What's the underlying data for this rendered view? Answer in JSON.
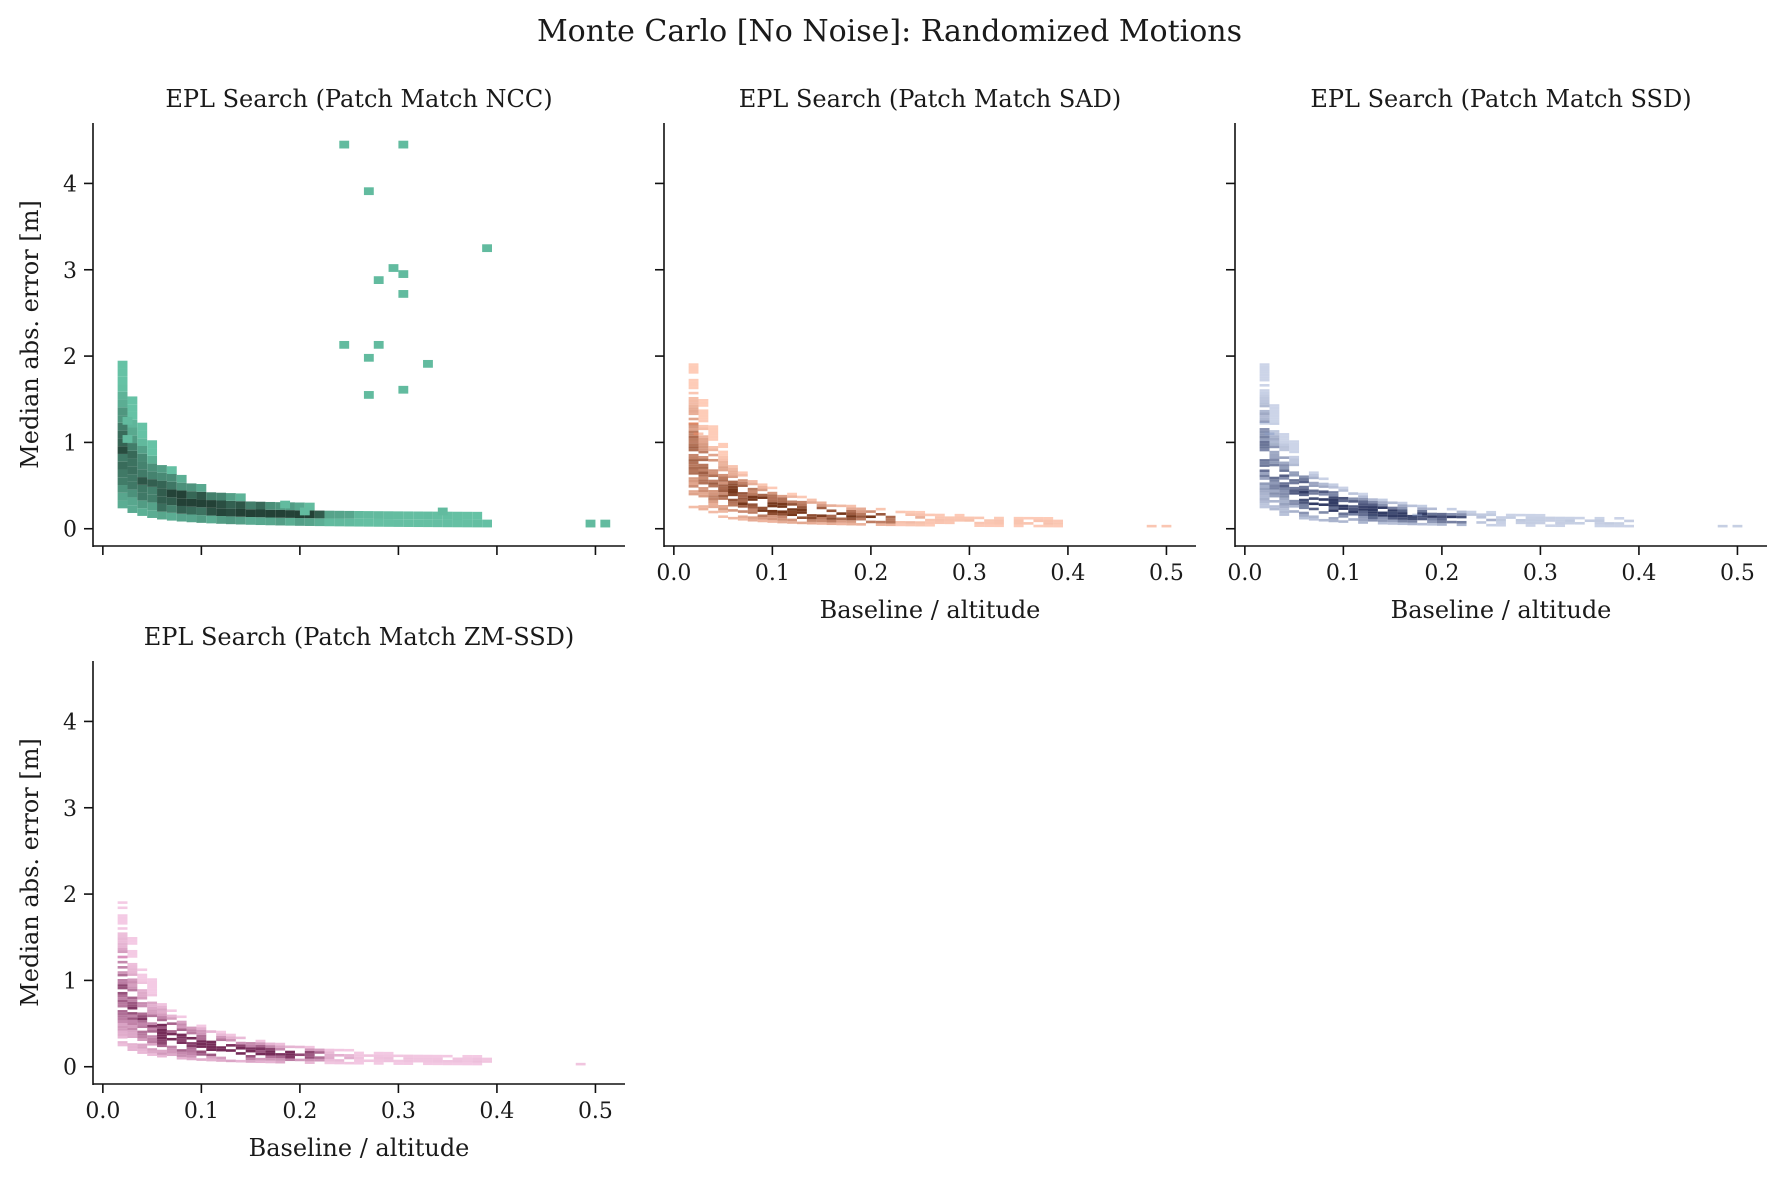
{
  "figure": {
    "title": "Monte Carlo [No Noise]: Randomized Motions"
  },
  "chart_data": [
    {
      "type": "heatmap",
      "title": "EPL Search (Patch Match NCC)",
      "xlabel": "",
      "ylabel": "Median abs. error [m]",
      "xlim": [
        -0.01,
        0.53
      ],
      "ylim": [
        -0.2,
        4.7
      ],
      "xticks": [
        0.0,
        0.1,
        0.2,
        0.3,
        0.4,
        0.5
      ],
      "xtick_labels_shown": false,
      "yticks": [
        0,
        1,
        2,
        3,
        4
      ],
      "ytick_labels_shown": true,
      "color": "#66c2a5",
      "dark_color": "#1f3a30",
      "bin_x": 0.01,
      "bin_y": 0.09,
      "outliers": [
        [
          0.02,
          1.25
        ],
        [
          0.02,
          1.04
        ],
        [
          0.24,
          4.45
        ],
        [
          0.3,
          4.45
        ],
        [
          0.265,
          3.91
        ],
        [
          0.385,
          3.25
        ],
        [
          0.29,
          3.02
        ],
        [
          0.3,
          2.95
        ],
        [
          0.275,
          2.88
        ],
        [
          0.3,
          2.72
        ],
        [
          0.24,
          2.13
        ],
        [
          0.275,
          2.13
        ],
        [
          0.265,
          1.98
        ],
        [
          0.325,
          1.91
        ],
        [
          0.3,
          1.61
        ],
        [
          0.265,
          1.55
        ],
        [
          0.18,
          0.28
        ],
        [
          0.2,
          0.2
        ],
        [
          0.34,
          0.2
        ],
        [
          0.49,
          0.06
        ],
        [
          0.505,
          0.06
        ]
      ],
      "tail_xmax": 0.39
    },
    {
      "type": "heatmap",
      "title": "EPL Search (Patch Match SAD)",
      "xlabel": "Baseline / altitude",
      "ylabel": "",
      "xlim": [
        -0.01,
        0.53
      ],
      "ylim": [
        -0.2,
        4.7
      ],
      "xticks": [
        0.0,
        0.1,
        0.2,
        0.3,
        0.4,
        0.5
      ],
      "xtick_labels": [
        "0.0",
        "0.1",
        "0.2",
        "0.3",
        "0.4",
        "0.5"
      ],
      "xtick_labels_shown": true,
      "yticks": [
        0,
        1,
        2,
        3,
        4
      ],
      "ytick_labels_shown": false,
      "color": "#fc8d62",
      "dark_color": "#6b2c10",
      "bin_x": 0.01,
      "bin_y": 0.03,
      "outliers": [
        [
          0.015,
          1.22
        ],
        [
          0.02,
          1.1
        ],
        [
          0.48,
          0.03
        ],
        [
          0.495,
          0.03
        ]
      ],
      "tail_xmax": 0.39
    },
    {
      "type": "heatmap",
      "title": "EPL Search (Patch Match SSD)",
      "xlabel": "Baseline / altitude",
      "ylabel": "",
      "xlim": [
        -0.01,
        0.53
      ],
      "ylim": [
        -0.2,
        4.7
      ],
      "xticks": [
        0.0,
        0.1,
        0.2,
        0.3,
        0.4,
        0.5
      ],
      "xtick_labels": [
        "0.0",
        "0.1",
        "0.2",
        "0.3",
        "0.4",
        "0.5"
      ],
      "xtick_labels_shown": true,
      "yticks": [
        0,
        1,
        2,
        3,
        4
      ],
      "ytick_labels_shown": false,
      "color": "#8da0cb",
      "dark_color": "#26305a",
      "bin_x": 0.01,
      "bin_y": 0.03,
      "outliers": [
        [
          0.015,
          1.22
        ],
        [
          0.02,
          1.1
        ],
        [
          0.17,
          0.16
        ],
        [
          0.48,
          0.03
        ],
        [
          0.495,
          0.03
        ]
      ],
      "tail_xmax": 0.39
    },
    {
      "type": "heatmap",
      "title": "EPL Search (Patch Match ZM-SSD)",
      "xlabel": "Baseline / altitude",
      "ylabel": "Median abs. error [m]",
      "xlim": [
        -0.01,
        0.53
      ],
      "ylim": [
        -0.2,
        4.7
      ],
      "xticks": [
        0.0,
        0.1,
        0.2,
        0.3,
        0.4,
        0.5
      ],
      "xtick_labels": [
        "0.0",
        "0.1",
        "0.2",
        "0.3",
        "0.4",
        "0.5"
      ],
      "xtick_labels_shown": true,
      "yticks": [
        0,
        1,
        2,
        3,
        4
      ],
      "ytick_labels": [
        "0",
        "1",
        "2",
        "3",
        "4"
      ],
      "ytick_labels_shown": true,
      "color": "#e78ac3",
      "dark_color": "#6b1f4d",
      "bin_x": 0.01,
      "bin_y": 0.03,
      "outliers": [
        [
          0.015,
          1.27
        ],
        [
          0.48,
          0.03
        ]
      ],
      "tail_xmax": 0.39
    }
  ],
  "ytick_labels": [
    "0",
    "1",
    "2",
    "3",
    "4"
  ]
}
